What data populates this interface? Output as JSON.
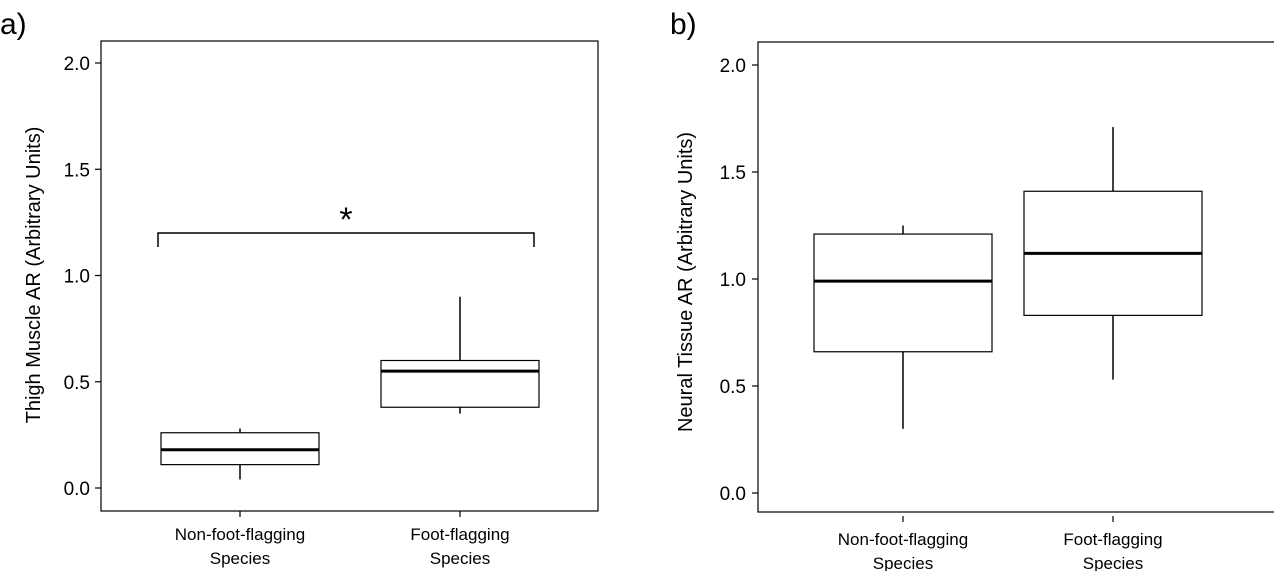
{
  "chart_data": [
    {
      "type": "box",
      "panel_label": "a)",
      "ylabel": "Thigh Muscle AR (Arbitrary Units)",
      "ylim": [
        -0.08,
        2.1
      ],
      "yticks": [
        "0.0",
        "0.5",
        "1.0",
        "1.5",
        "2.0"
      ],
      "categories": [
        {
          "line1": "Non-foot-flagging",
          "line2": "Species"
        },
        {
          "line1": "Foot-flagging",
          "line2": "Species"
        }
      ],
      "boxes": [
        {
          "whisker_low": 0.04,
          "q1": 0.11,
          "median": 0.18,
          "q3": 0.26,
          "whisker_high": 0.28
        },
        {
          "whisker_low": 0.35,
          "q1": 0.38,
          "median": 0.55,
          "q3": 0.6,
          "whisker_high": 0.9
        }
      ],
      "significance": {
        "label": "*",
        "y": 1.2
      }
    },
    {
      "type": "box",
      "panel_label": "b)",
      "ylabel": "Neural Tissue AR (Arbitrary Units)",
      "ylim": [
        -0.08,
        2.1
      ],
      "yticks": [
        "0.0",
        "0.5",
        "1.0",
        "1.5",
        "2.0"
      ],
      "categories": [
        {
          "line1": "Non-foot-flagging",
          "line2": "Species"
        },
        {
          "line1": "Foot-flagging",
          "line2": "Species"
        }
      ],
      "boxes": [
        {
          "whisker_low": 0.3,
          "q1": 0.66,
          "median": 0.99,
          "q3": 1.21,
          "whisker_high": 1.25
        },
        {
          "whisker_low": 0.53,
          "q1": 0.83,
          "median": 1.12,
          "q3": 1.41,
          "whisker_high": 1.71
        }
      ]
    }
  ]
}
